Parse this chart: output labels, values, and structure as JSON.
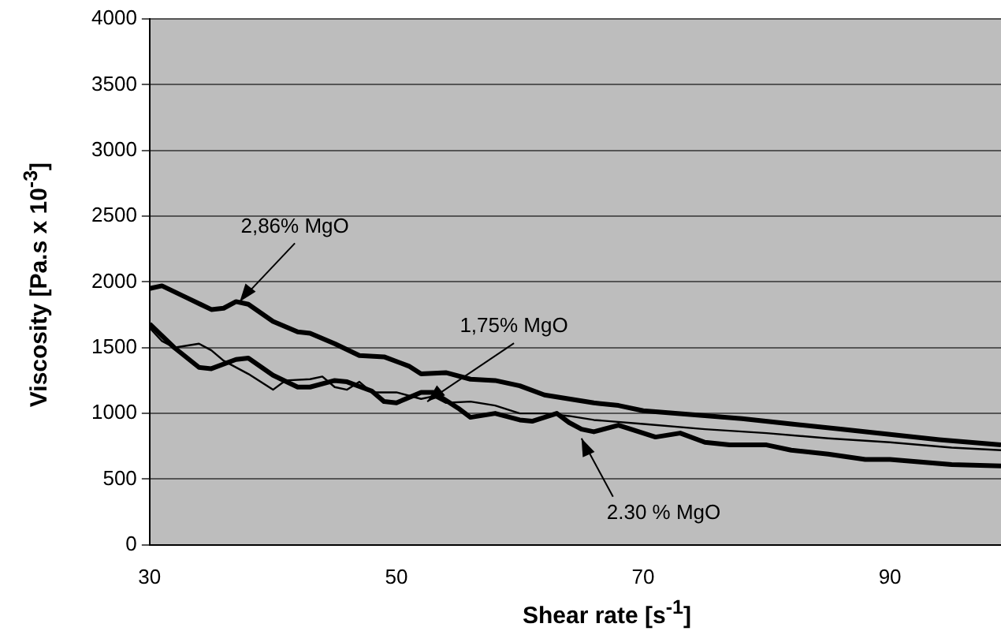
{
  "chart_data": {
    "type": "line",
    "xlabel": "Shear rate [s$^{-1}$]",
    "ylabel": "Viscosity [Pa.s x 10$^{-3}$]",
    "xlim": [
      30,
      99
    ],
    "xticks": [
      30,
      50,
      70,
      90
    ],
    "ylim": [
      0,
      4000
    ],
    "yticks": [
      0,
      500,
      1000,
      1500,
      2000,
      2500,
      3000,
      3500,
      4000
    ],
    "grid": "y",
    "marker": "none",
    "line_style": "solid",
    "series": [
      {
        "color": "#000000",
        "x": [
          30,
          31,
          33,
          35,
          36,
          37,
          38,
          40,
          42,
          43,
          45,
          47,
          49,
          51,
          52,
          54,
          56,
          58,
          60,
          62,
          64,
          66,
          68,
          70,
          74,
          78,
          82,
          86,
          90,
          94,
          99
        ],
        "values": [
          1950,
          1970,
          1880,
          1790,
          1800,
          1850,
          1830,
          1700,
          1620,
          1610,
          1530,
          1440,
          1430,
          1360,
          1300,
          1310,
          1260,
          1250,
          1210,
          1140,
          1110,
          1080,
          1060,
          1020,
          990,
          960,
          920,
          880,
          840,
          800,
          760
        ]
      },
      {
        "color": "#000000",
        "x": [
          30,
          31,
          32,
          34,
          35,
          36,
          38,
          40,
          41,
          43,
          44,
          45,
          46,
          47,
          48,
          50,
          52,
          53,
          54,
          56,
          58,
          60,
          62,
          64,
          66,
          70,
          75,
          80,
          85,
          90,
          95,
          99
        ],
        "values": [
          1650,
          1550,
          1500,
          1530,
          1480,
          1400,
          1300,
          1180,
          1250,
          1260,
          1280,
          1200,
          1180,
          1240,
          1160,
          1160,
          1110,
          1130,
          1080,
          1090,
          1060,
          1000,
          1000,
          980,
          950,
          920,
          880,
          850,
          810,
          780,
          740,
          720
        ]
      },
      {
        "color": "#000000",
        "x": [
          30,
          32,
          34,
          35,
          37,
          38,
          40,
          42,
          43,
          45,
          46,
          48,
          49,
          50,
          52,
          53,
          55,
          56,
          58,
          60,
          61,
          63,
          64,
          65,
          66,
          68,
          69,
          71,
          73,
          75,
          77,
          80,
          82,
          85,
          88,
          90,
          95,
          99
        ],
        "values": [
          1680,
          1500,
          1350,
          1340,
          1410,
          1420,
          1290,
          1200,
          1200,
          1250,
          1240,
          1170,
          1090,
          1080,
          1160,
          1160,
          1040,
          970,
          1000,
          950,
          940,
          1000,
          930,
          880,
          860,
          910,
          880,
          820,
          850,
          780,
          760,
          760,
          720,
          690,
          650,
          650,
          610,
          600
        ]
      }
    ],
    "annotations": [
      {
        "text": "2,86% MgO",
        "x": 37.3,
        "y": 1850
      },
      {
        "text": "1,75% MgO",
        "x": 52.5,
        "y": 1090
      },
      {
        "text": "2.30 % MgO",
        "x": 65,
        "y": 810
      }
    ]
  }
}
